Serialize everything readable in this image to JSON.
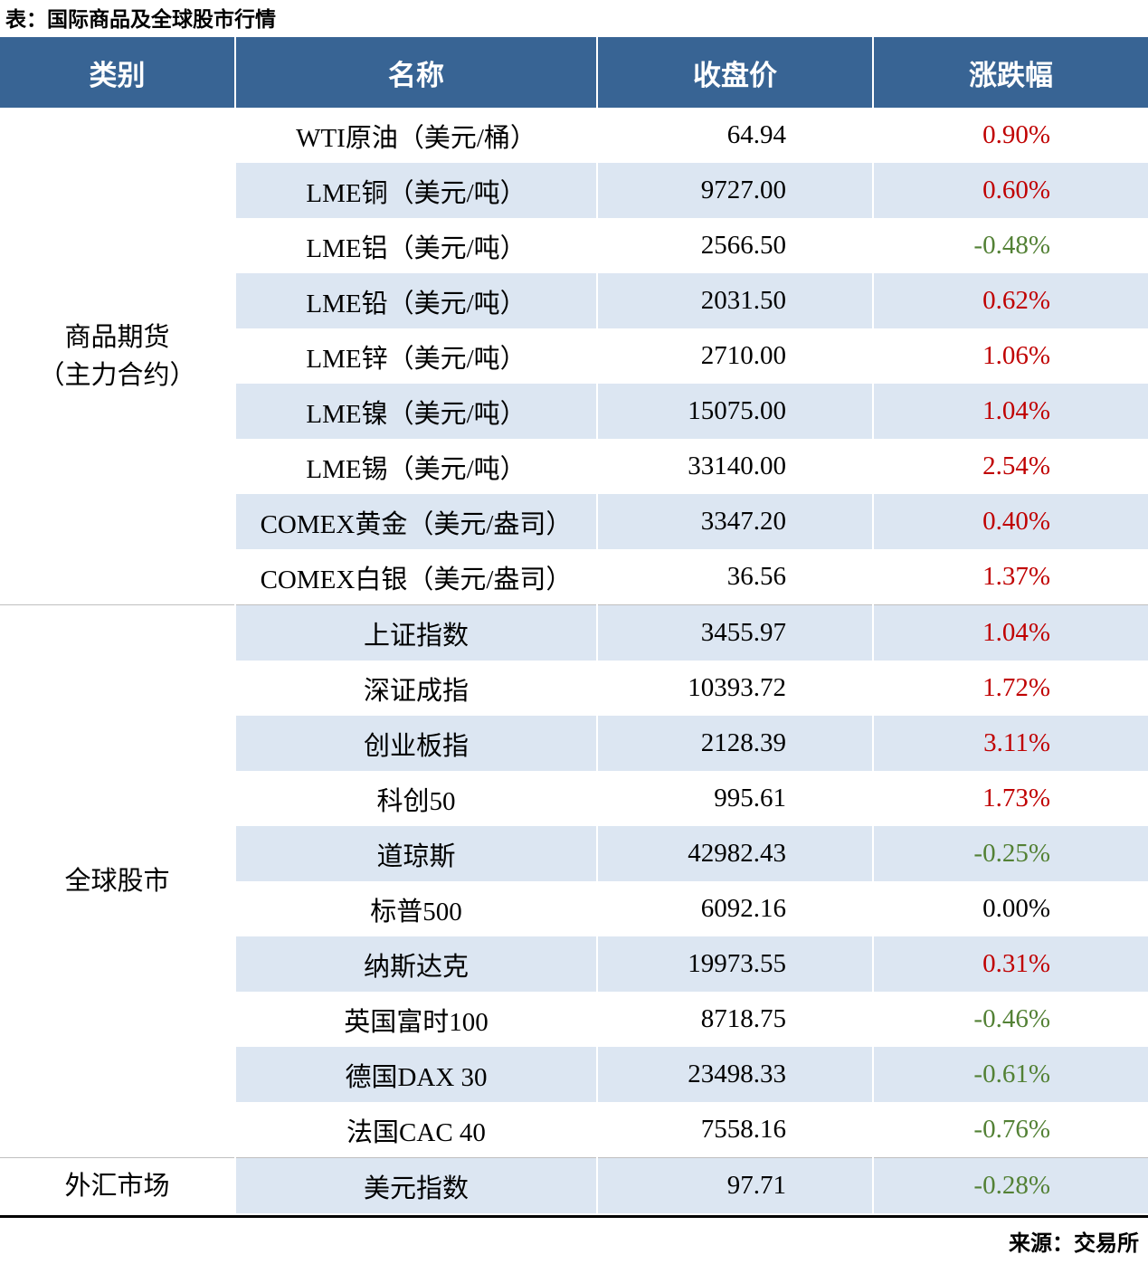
{
  "title": "表：国际商品及全球股市行情",
  "source": "来源：交易所",
  "colors": {
    "header_bg": "#386494",
    "band_row": "#dce6f2",
    "up": "#c00000",
    "down": "#538135",
    "flat": "#000000"
  },
  "chart_data": {
    "type": "table",
    "title": "国际商品及全球股市行情",
    "headers": [
      "类别",
      "名称",
      "收盘价",
      "涨跌幅"
    ],
    "groups": [
      {
        "category": "商品期货\n（主力合约）",
        "rows": [
          {
            "name": "WTI原油（美元/桶）",
            "close": "64.94",
            "change": "0.90%",
            "direction": "up"
          },
          {
            "name": "LME铜（美元/吨）",
            "close": "9727.00",
            "change": "0.60%",
            "direction": "up"
          },
          {
            "name": "LME铝（美元/吨）",
            "close": "2566.50",
            "change": "-0.48%",
            "direction": "down"
          },
          {
            "name": "LME铅（美元/吨）",
            "close": "2031.50",
            "change": "0.62%",
            "direction": "up"
          },
          {
            "name": "LME锌（美元/吨）",
            "close": "2710.00",
            "change": "1.06%",
            "direction": "up"
          },
          {
            "name": "LME镍（美元/吨）",
            "close": "15075.00",
            "change": "1.04%",
            "direction": "up"
          },
          {
            "name": "LME锡（美元/吨）",
            "close": "33140.00",
            "change": "2.54%",
            "direction": "up"
          },
          {
            "name": "COMEX黄金（美元/盎司）",
            "close": "3347.20",
            "change": "0.40%",
            "direction": "up"
          },
          {
            "name": "COMEX白银（美元/盎司）",
            "close": "36.56",
            "change": "1.37%",
            "direction": "up"
          }
        ]
      },
      {
        "category": "全球股市",
        "rows": [
          {
            "name": "上证指数",
            "close": "3455.97",
            "change": "1.04%",
            "direction": "up"
          },
          {
            "name": "深证成指",
            "close": "10393.72",
            "change": "1.72%",
            "direction": "up"
          },
          {
            "name": "创业板指",
            "close": "2128.39",
            "change": "3.11%",
            "direction": "up"
          },
          {
            "name": "科创50",
            "close": "995.61",
            "change": "1.73%",
            "direction": "up"
          },
          {
            "name": "道琼斯",
            "close": "42982.43",
            "change": "-0.25%",
            "direction": "down"
          },
          {
            "name": "标普500",
            "close": "6092.16",
            "change": "0.00%",
            "direction": "flat"
          },
          {
            "name": "纳斯达克",
            "close": "19973.55",
            "change": "0.31%",
            "direction": "up"
          },
          {
            "name": "英国富时100",
            "close": "8718.75",
            "change": "-0.46%",
            "direction": "down"
          },
          {
            "name": "德国DAX 30",
            "close": "23498.33",
            "change": "-0.61%",
            "direction": "down"
          },
          {
            "name": "法国CAC 40",
            "close": "7558.16",
            "change": "-0.76%",
            "direction": "down"
          }
        ]
      },
      {
        "category": "外汇市场",
        "rows": [
          {
            "name": "美元指数",
            "close": "97.71",
            "change": "-0.28%",
            "direction": "down"
          }
        ]
      }
    ]
  }
}
